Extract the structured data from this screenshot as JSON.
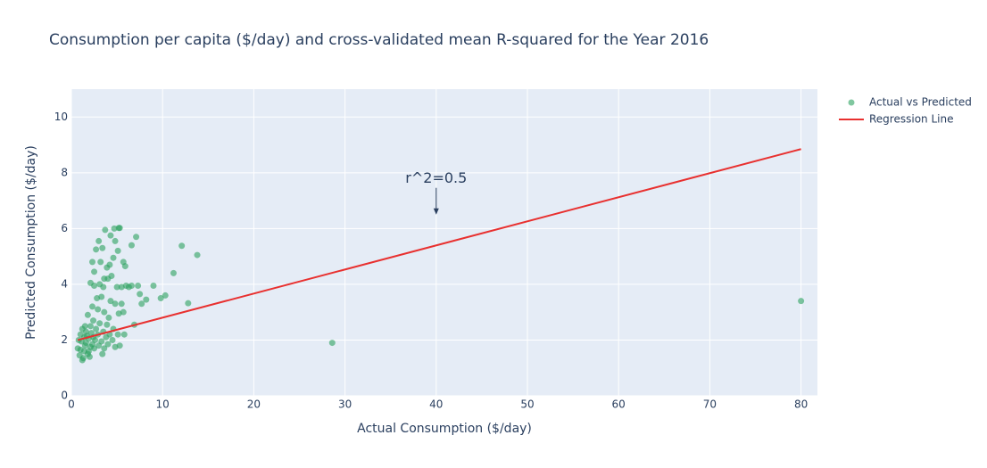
{
  "chart_data": {
    "type": "scatter",
    "title": "Consumption per capita ($/day) and cross-validated mean R-squared for the Year 2016",
    "x_label": "Actual Consumption ($/day)",
    "y_label": "Predicted Consumption ($/day)",
    "xlim": [
      0,
      81.8
    ],
    "ylim": [
      0,
      11
    ],
    "xticks": [
      0,
      10,
      20,
      30,
      40,
      50,
      60,
      70,
      80
    ],
    "yticks": [
      0,
      2,
      4,
      6,
      8,
      10
    ],
    "grid": true,
    "legend": "top-right",
    "annotations": [
      {
        "text": "r^2=0.5",
        "x": 40,
        "y": 6.5
      }
    ],
    "series": [
      {
        "name": "Actual vs Predicted",
        "mode": "markers",
        "color": "#2ca25f",
        "x": [
          80,
          28.6,
          13.8,
          12.1,
          12.8,
          11.2,
          10.3,
          9.8,
          9,
          8.2,
          7.7,
          7.5,
          7.3,
          6.9,
          7.1,
          6.6,
          6.6,
          6.3,
          5.9,
          5.7,
          5.2,
          5.3,
          4.7,
          3.7,
          4.3,
          4.8,
          5.1,
          3,
          3.4,
          2.7,
          2.3,
          2.5,
          3.2,
          3.9,
          4.2,
          4.6,
          3.6,
          4,
          4.4,
          3.1,
          2.5,
          2.1,
          3.5,
          5,
          5.5,
          6,
          2.8,
          3.3,
          4.3,
          4.8,
          5.5,
          2.3,
          2.9,
          3.6,
          4.1,
          5.2,
          5.7,
          1.8,
          2.4,
          3.1,
          3.9,
          4.6,
          1.5,
          2.1,
          2.7,
          3.5,
          4.2,
          5.1,
          5.8,
          1.2,
          1.6,
          2.2,
          2.9,
          3.8,
          4.5,
          5.3,
          1.0,
          1.4,
          1.9,
          2.6,
          3.3,
          4.0,
          4.8,
          0.8,
          1.1,
          1.6,
          2.3,
          3.0,
          3.6,
          0.7,
          1.0,
          1.4,
          1.9,
          2.5,
          3.4,
          0.9,
          1.3,
          1.2,
          1.8,
          2.1,
          1.5,
          2.4,
          1.7,
          2.0
        ],
        "values": [
          3.4,
          1.9,
          5.05,
          5.38,
          3.32,
          4.4,
          3.6,
          3.5,
          3.95,
          3.45,
          3.3,
          3.65,
          3.95,
          2.55,
          5.7,
          5.4,
          3.95,
          3.9,
          4.65,
          4.8,
          6.02,
          6.02,
          6.0,
          5.95,
          5.75,
          5.55,
          5.2,
          5.55,
          5.3,
          5.25,
          4.8,
          4.45,
          4.8,
          4.6,
          4.7,
          4.95,
          4.2,
          4.2,
          4.3,
          4.0,
          3.95,
          4.05,
          3.9,
          3.9,
          3.9,
          3.95,
          3.5,
          3.55,
          3.4,
          3.3,
          3.3,
          3.2,
          3.1,
          3.0,
          2.8,
          2.95,
          3.0,
          2.9,
          2.7,
          2.6,
          2.55,
          2.4,
          2.5,
          2.5,
          2.4,
          2.3,
          2.2,
          2.2,
          2.2,
          2.4,
          2.3,
          2.25,
          2.2,
          2.1,
          2.0,
          1.8,
          2.2,
          2.1,
          2.05,
          2.0,
          1.95,
          1.85,
          1.75,
          2.0,
          1.95,
          1.9,
          1.85,
          1.8,
          1.7,
          1.7,
          1.65,
          1.6,
          1.6,
          1.7,
          1.5,
          1.45,
          1.35,
          1.28,
          1.5,
          1.75,
          1.8,
          2.1,
          2.15,
          1.4
        ]
      },
      {
        "name": "Regression Line",
        "mode": "lines",
        "color": "#e8302f",
        "x": [
          0.7,
          80
        ],
        "values": [
          2.0,
          8.85
        ]
      }
    ]
  }
}
